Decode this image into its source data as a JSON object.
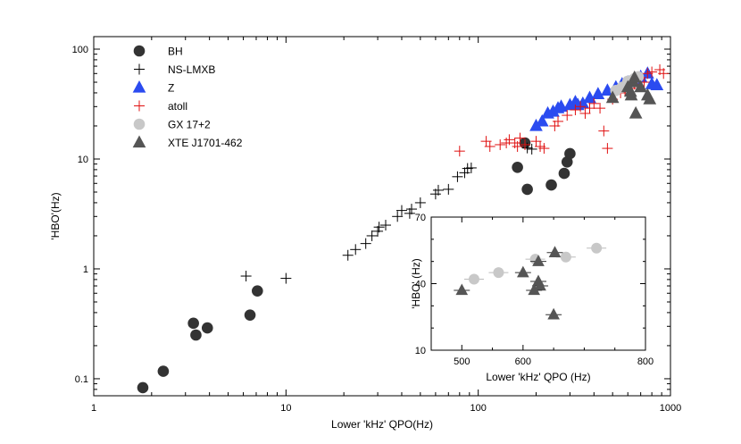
{
  "chart_data": [
    {
      "id": "main",
      "type": "scatter",
      "xscale": "log",
      "yscale": "log",
      "xlim": [
        1,
        1000
      ],
      "ylim": [
        0.07,
        130
      ],
      "xlabel": "Lower 'kHz' QPO(Hz)",
      "ylabel": "'HBO'(Hz)",
      "xticks": [
        1,
        10,
        100,
        1000
      ],
      "xtick_labels": [
        "1",
        "10",
        "100",
        "1000"
      ],
      "yticks": [
        0.1,
        1,
        10,
        100
      ],
      "ytick_labels": [
        "0.1",
        "1",
        "10",
        "100"
      ],
      "legend_position": "top-left",
      "series": [
        {
          "name": "BH",
          "marker": "circle",
          "color": "#333333",
          "points": [
            [
              1.8,
              0.083
            ],
            [
              2.3,
              0.117
            ],
            [
              3.3,
              0.32
            ],
            [
              3.4,
              0.25
            ],
            [
              3.9,
              0.29
            ],
            [
              6.5,
              0.38
            ],
            [
              7.1,
              0.63
            ],
            [
              175,
              14
            ],
            [
              180,
              5.3
            ],
            [
              160,
              8.4
            ],
            [
              240,
              5.8
            ],
            [
              280,
              7.4
            ],
            [
              290,
              9.4
            ],
            [
              300,
              11.2
            ]
          ]
        },
        {
          "name": "NS-LMXB",
          "marker": "plus",
          "color": "#000000",
          "points": [
            [
              6.2,
              0.86
            ],
            [
              10,
              0.82
            ],
            [
              21,
              1.33
            ],
            [
              23,
              1.5
            ],
            [
              26,
              1.7
            ],
            [
              28,
              2.0
            ],
            [
              30,
              2.2
            ],
            [
              30.5,
              2.4
            ],
            [
              33,
              2.5
            ],
            [
              38,
              3.0
            ],
            [
              40,
              3.4
            ],
            [
              44,
              3.2
            ],
            [
              45,
              3.5
            ],
            [
              50,
              4.0
            ],
            [
              60,
              4.8
            ],
            [
              62,
              5.2
            ],
            [
              70,
              5.3
            ],
            [
              78,
              6.9
            ],
            [
              85,
              7.5
            ],
            [
              88,
              8.2
            ],
            [
              92,
              8.3
            ],
            [
              180,
              12.6
            ],
            [
              190,
              12.3
            ]
          ]
        },
        {
          "name": "Z",
          "marker": "triangle",
          "color": "#2b4bf0",
          "points": [
            [
              200,
              20
            ],
            [
              215,
              22
            ],
            [
              230,
              26
            ],
            [
              245,
              27
            ],
            [
              260,
              29
            ],
            [
              270,
              30
            ],
            [
              300,
              31
            ],
            [
              320,
              33
            ],
            [
              330,
              31
            ],
            [
              350,
              32
            ],
            [
              380,
              36
            ],
            [
              420,
              39
            ],
            [
              470,
              42
            ],
            [
              520,
              45
            ],
            [
              560,
              48
            ],
            [
              600,
              50
            ],
            [
              650,
              53
            ],
            [
              700,
              56
            ],
            [
              760,
              60
            ],
            [
              800,
              48
            ],
            [
              850,
              47
            ]
          ]
        },
        {
          "name": "atoll",
          "marker": "plus",
          "color": "#e01010",
          "points": [
            [
              80,
              11.8
            ],
            [
              110,
              14.5
            ],
            [
              115,
              13
            ],
            [
              130,
              13.5
            ],
            [
              140,
              14
            ],
            [
              145,
              15
            ],
            [
              155,
              14
            ],
            [
              160,
              13
            ],
            [
              165,
              15.5
            ],
            [
              175,
              13.5
            ],
            [
              200,
              14.5
            ],
            [
              210,
              13
            ],
            [
              220,
              12.5
            ],
            [
              250,
              20
            ],
            [
              260,
              22
            ],
            [
              290,
              25
            ],
            [
              320,
              28
            ],
            [
              340,
              30
            ],
            [
              360,
              26
            ],
            [
              380,
              29
            ],
            [
              400,
              32
            ],
            [
              430,
              29
            ],
            [
              450,
              18
            ],
            [
              470,
              12.5
            ],
            [
              500,
              35
            ],
            [
              550,
              40
            ],
            [
              580,
              42
            ],
            [
              620,
              44
            ],
            [
              650,
              48
            ],
            [
              700,
              55
            ],
            [
              730,
              50
            ],
            [
              760,
              60
            ],
            [
              800,
              62
            ],
            [
              880,
              65
            ],
            [
              920,
              60
            ]
          ]
        },
        {
          "name": "GX 17+2",
          "marker": "circle",
          "color": "#c8c8c8",
          "points": [
            [
              520,
              42
            ],
            [
              560,
              45
            ],
            [
              600,
              51
            ],
            [
              630,
              52
            ],
            [
              650,
              54
            ],
            [
              680,
              56
            ]
          ]
        },
        {
          "name": "XTE J1701-462",
          "marker": "triangle",
          "color": "#555555",
          "points": [
            [
              500,
              36
            ],
            [
              600,
              45
            ],
            [
              620,
              41
            ],
            [
              625,
              38
            ],
            [
              640,
              50
            ],
            [
              650,
              55
            ],
            [
              660,
              26
            ],
            [
              700,
              45
            ],
            [
              760,
              38
            ],
            [
              780,
              35
            ]
          ]
        }
      ]
    },
    {
      "id": "inset",
      "type": "scatter",
      "xlim": [
        450,
        800
      ],
      "ylim": [
        10,
        70
      ],
      "xlabel": "Lower 'kHz' QPO (Hz)",
      "ylabel": "'HBO' (Hz)",
      "xticks": [
        500,
        600,
        800
      ],
      "xtick_labels": [
        "500",
        "600",
        "800"
      ],
      "yticks": [
        10,
        40,
        70
      ],
      "ytick_labels": [
        "10",
        "40",
        "70"
      ],
      "series": [
        {
          "name": "GX 17+2",
          "marker": "circle",
          "color": "#c8c8c8",
          "points": [
            [
              520,
              42
            ],
            [
              560,
              45
            ],
            [
              620,
              51
            ],
            [
              670,
              52
            ],
            [
              720,
              56
            ]
          ]
        },
        {
          "name": "XTE J1701-462",
          "marker": "triangle",
          "color": "#555555",
          "points": [
            [
              500,
              37
            ],
            [
              600,
              45
            ],
            [
              625,
              50
            ],
            [
              652,
              54
            ],
            [
              625,
              41
            ],
            [
              628,
              39
            ],
            [
              618,
              37
            ],
            [
              650,
              26
            ]
          ]
        }
      ]
    }
  ]
}
